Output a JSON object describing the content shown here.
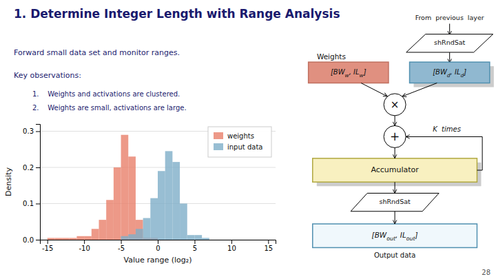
{
  "chart_data": {
    "type": "histogram",
    "title": "1. Determine Integer Length with Range Analysis",
    "subtitle": "Forward small data set and monitor ranges.",
    "xlabel": "Value range (log₂)",
    "ylabel": "Density",
    "series": [
      {
        "name": "weights",
        "color": "#e8806a",
        "bins": [
          -15,
          -14,
          -13,
          -12,
          -11,
          -10,
          -9,
          -8,
          -7,
          -6,
          -5,
          -4,
          -3,
          -2,
          -1,
          0
        ],
        "values": [
          0.005,
          0.005,
          0.005,
          0.005,
          0.01,
          0.01,
          0.03,
          0.055,
          0.11,
          0.2,
          0.29,
          0.23,
          0.055,
          0.005,
          0.005
        ]
      },
      {
        "name": "input data",
        "color": "#7eaec8",
        "bins": [
          -5,
          -4,
          -3,
          -2,
          -1,
          0,
          1,
          2,
          3,
          4,
          5,
          6,
          7
        ],
        "values": [
          0.01,
          0.015,
          0.03,
          0.06,
          0.115,
          0.19,
          0.245,
          0.215,
          0.1,
          0.013,
          0.013,
          0.005
        ]
      }
    ],
    "xlim": [
      -16,
      16
    ],
    "ylim": [
      0,
      0.32
    ],
    "xticks": [
      -15,
      -10,
      -5,
      0,
      5,
      10,
      15
    ],
    "yticks": [
      {
        "value": 0.0,
        "label": "0.0"
      },
      0.1,
      0.2,
      0.3
    ],
    "grid": true,
    "legend": "upper right",
    "annotations": [
      "Key observations:",
      "1.    Weights and activations are clustered.",
      "2.    Weights are small, activations are large.",
      "From  previous  layer",
      "shRndSat",
      "[BWw, ILw]",
      "[BWd, ILd]",
      "Weights",
      "×",
      "+",
      "K  times",
      "Accumulator",
      "shRndSat",
      "[BWout, ILout]",
      "Output data",
      "28"
    ]
  }
}
